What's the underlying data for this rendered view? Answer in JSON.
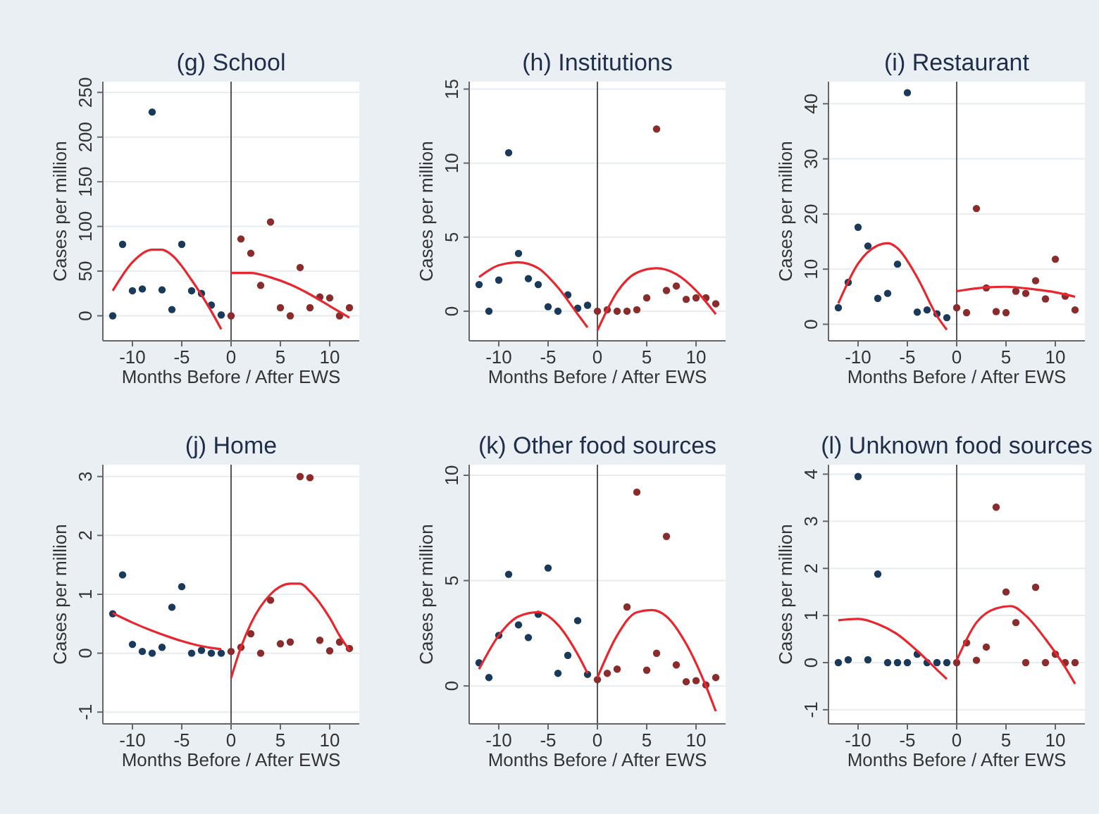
{
  "chart_data": [
    {
      "type": "scatter",
      "title": "(g) School",
      "xlabel": "Months Before / After EWS",
      "ylabel": "Cases per million",
      "xlim": [
        -13,
        13
      ],
      "xticks": [
        -10,
        -5,
        0,
        5,
        10
      ],
      "ylim": [
        -28,
        262
      ],
      "yticks": [
        0,
        50,
        100,
        150,
        200,
        250
      ],
      "grid": "y",
      "marker": "circle",
      "ref_lines": [
        {
          "axis": "x",
          "value": 0,
          "color": "#555555"
        }
      ],
      "series": [
        {
          "color": "#1a3a5c",
          "x": [
            -12,
            -11,
            -10,
            -9,
            -8,
            -7,
            -6,
            -5,
            -4,
            -3,
            -2,
            -1
          ],
          "values": [
            0,
            80,
            28,
            30,
            228,
            29,
            7,
            80,
            28,
            25,
            12,
            1
          ]
        },
        {
          "color": "#8b2c2c",
          "x": [
            0,
            1,
            2,
            3,
            4,
            5,
            6,
            7,
            8,
            9,
            10,
            11,
            12
          ],
          "values": [
            0,
            86,
            70,
            34,
            105,
            9,
            0,
            54,
            9,
            21,
            20,
            0,
            9
          ]
        },
        {
          "type": "line",
          "marker": "none",
          "color": "#e8262e",
          "x": [
            -12,
            -10,
            -8,
            -7,
            -6,
            -4,
            -2,
            -1
          ],
          "values": [
            28,
            60,
            74,
            74,
            68,
            40,
            5,
            -15
          ]
        },
        {
          "type": "line",
          "marker": "none",
          "color": "#e8262e",
          "x": [
            0,
            2,
            4,
            6,
            8,
            10,
            12
          ],
          "values": [
            48,
            48,
            43,
            35,
            24,
            11,
            -2
          ]
        }
      ]
    },
    {
      "type": "scatter",
      "title": "(h) Institutions",
      "xlabel": "Months Before / After EWS",
      "ylabel": "Cases per million",
      "xlim": [
        -13,
        13
      ],
      "xticks": [
        -10,
        -5,
        0,
        5,
        10
      ],
      "ylim": [
        -2,
        15.5
      ],
      "yticks": [
        0,
        5,
        10,
        15
      ],
      "grid": "y",
      "marker": "circle",
      "ref_lines": [
        {
          "axis": "x",
          "value": 0,
          "color": "#555555"
        }
      ],
      "series": [
        {
          "color": "#1a3a5c",
          "x": [
            -12,
            -11,
            -10,
            -9,
            -8,
            -7,
            -6,
            -5,
            -4,
            -3,
            -2,
            -1
          ],
          "values": [
            1.8,
            0,
            2.1,
            10.7,
            3.9,
            2.2,
            1.8,
            0.3,
            0,
            1.1,
            0.2,
            0.4
          ]
        },
        {
          "color": "#8b2c2c",
          "x": [
            0,
            1,
            2,
            3,
            4,
            5,
            6,
            7,
            8,
            9,
            10,
            11,
            12
          ],
          "values": [
            0,
            0.1,
            0,
            0,
            0.1,
            0.9,
            12.3,
            1.4,
            1.7,
            0.8,
            0.9,
            0.9,
            0.5
          ]
        },
        {
          "type": "line",
          "marker": "none",
          "color": "#e8262e",
          "x": [
            -12,
            -10,
            -8,
            -6,
            -4,
            -2,
            -1
          ],
          "values": [
            2.3,
            3.1,
            3.3,
            2.9,
            1.6,
            -0.2,
            -1.1
          ]
        },
        {
          "type": "line",
          "marker": "none",
          "color": "#e8262e",
          "x": [
            0,
            2,
            4,
            6,
            8,
            10,
            12
          ],
          "values": [
            -1.3,
            1.3,
            2.6,
            2.9,
            2.5,
            1.4,
            -0.2
          ]
        }
      ]
    },
    {
      "type": "scatter",
      "title": "(i) Restaurant",
      "xlabel": "Months Before / After EWS",
      "ylabel": "Cases per million",
      "xlim": [
        -13,
        13
      ],
      "xticks": [
        -10,
        -5,
        0,
        5,
        10
      ],
      "ylim": [
        -3,
        44
      ],
      "yticks": [
        0,
        10,
        20,
        30,
        40
      ],
      "grid": "y",
      "marker": "circle",
      "ref_lines": [
        {
          "axis": "x",
          "value": 0,
          "color": "#555555"
        }
      ],
      "series": [
        {
          "color": "#1a3a5c",
          "x": [
            -12,
            -11,
            -10,
            -9,
            -8,
            -7,
            -6,
            -5,
            -4,
            -3,
            -2,
            -1
          ],
          "values": [
            3,
            7.6,
            17.6,
            14.2,
            4.7,
            5.6,
            10.9,
            42,
            2.2,
            2.6,
            1.9,
            1.2
          ]
        },
        {
          "color": "#8b2c2c",
          "x": [
            0,
            1,
            2,
            3,
            4,
            5,
            6,
            7,
            8,
            9,
            10,
            11,
            12
          ],
          "values": [
            3,
            2.1,
            21,
            6.6,
            2.3,
            2.1,
            6,
            5.6,
            7.9,
            4.6,
            11.8,
            5.1,
            2.6
          ]
        },
        {
          "type": "line",
          "marker": "none",
          "color": "#e8262e",
          "x": [
            -12,
            -10,
            -8,
            -7,
            -6,
            -4,
            -2,
            -1
          ],
          "values": [
            3.8,
            11,
            14.3,
            14.7,
            13.8,
            8.5,
            1.5,
            -1
          ]
        },
        {
          "type": "line",
          "marker": "none",
          "color": "#e8262e",
          "x": [
            0,
            3,
            5,
            8,
            10,
            12
          ],
          "values": [
            6,
            6.7,
            6.8,
            6.3,
            5.8,
            5
          ]
        }
      ]
    },
    {
      "type": "scatter",
      "title": "(j) Home",
      "xlabel": "Months Before / After EWS",
      "ylabel": "Cases per million",
      "xlim": [
        -13,
        13
      ],
      "xticks": [
        -10,
        -5,
        0,
        5,
        10
      ],
      "ylim": [
        -1.2,
        3.2
      ],
      "yticks": [
        -1,
        0,
        1,
        2,
        3
      ],
      "grid": "y",
      "marker": "circle",
      "ref_lines": [
        {
          "axis": "x",
          "value": 0,
          "color": "#555555"
        }
      ],
      "series": [
        {
          "color": "#1a3a5c",
          "x": [
            -12,
            -11,
            -10,
            -9,
            -8,
            -7,
            -6,
            -5,
            -4,
            -3,
            -2,
            -1
          ],
          "values": [
            0.67,
            1.33,
            0.15,
            0.03,
            0,
            0.1,
            0.78,
            1.13,
            0,
            0.05,
            0,
            0
          ]
        },
        {
          "color": "#8b2c2c",
          "x": [
            0,
            1,
            2,
            3,
            4,
            5,
            6,
            7,
            8,
            9,
            10,
            11,
            12
          ],
          "values": [
            0.03,
            0.1,
            0.33,
            0,
            0.9,
            0.16,
            0.19,
            3,
            2.98,
            0.22,
            0.04,
            0.19,
            0.08
          ]
        },
        {
          "type": "line",
          "marker": "none",
          "color": "#e8262e",
          "x": [
            -12,
            -10,
            -8,
            -6,
            -4,
            -2,
            -1
          ],
          "values": [
            0.68,
            0.52,
            0.38,
            0.26,
            0.16,
            0.09,
            0.07
          ]
        },
        {
          "type": "line",
          "marker": "none",
          "color": "#e8262e",
          "x": [
            0,
            1,
            2,
            4,
            6,
            7,
            8,
            10,
            11,
            12
          ],
          "values": [
            -0.42,
            0.1,
            0.5,
            1,
            1.18,
            1.18,
            1.05,
            0.6,
            0.3,
            0.05
          ]
        }
      ]
    },
    {
      "type": "scatter",
      "title": "(k) Other food sources",
      "xlabel": "Months Before / After EWS",
      "ylabel": "Cases per million",
      "xlim": [
        -13,
        13
      ],
      "xticks": [
        -10,
        -5,
        0,
        5,
        10
      ],
      "ylim": [
        -1.8,
        10.5
      ],
      "yticks": [
        0,
        5,
        10
      ],
      "grid": "y",
      "marker": "circle",
      "ref_lines": [
        {
          "axis": "x",
          "value": 0,
          "color": "#555555"
        }
      ],
      "series": [
        {
          "color": "#1a3a5c",
          "x": [
            -12,
            -11,
            -10,
            -9,
            -8,
            -7,
            -6,
            -5,
            -4,
            -3,
            -2,
            -1
          ],
          "values": [
            1.1,
            0.4,
            2.4,
            5.3,
            2.9,
            2.3,
            3.4,
            5.6,
            0.6,
            1.45,
            3.1,
            0.55
          ]
        },
        {
          "color": "#8b2c2c",
          "x": [
            0,
            1,
            2,
            3,
            4,
            5,
            6,
            7,
            8,
            9,
            10,
            11,
            12
          ],
          "values": [
            0.3,
            0.6,
            0.8,
            3.75,
            9.2,
            0.75,
            1.55,
            7.1,
            1,
            0.2,
            0.25,
            0.05,
            0.4
          ]
        },
        {
          "type": "line",
          "marker": "none",
          "color": "#e8262e",
          "x": [
            -12,
            -10,
            -8,
            -6,
            -4,
            -2,
            -1
          ],
          "values": [
            0.8,
            2.4,
            3.3,
            3.5,
            2.9,
            1.5,
            0.6
          ]
        },
        {
          "type": "line",
          "marker": "none",
          "color": "#e8262e",
          "x": [
            0,
            2,
            4,
            5.5,
            7,
            9,
            11,
            12
          ],
          "values": [
            0.4,
            2.4,
            3.5,
            3.6,
            3.3,
            2,
            0,
            -1.2
          ]
        }
      ]
    },
    {
      "type": "scatter",
      "title": "(l) Unknown food sources",
      "xlabel": "Months Before / After EWS",
      "ylabel": "Cases per million",
      "xlim": [
        -13,
        13
      ],
      "xticks": [
        -10,
        -5,
        0,
        5,
        10
      ],
      "ylim": [
        -1.3,
        4.2
      ],
      "yticks": [
        -1,
        0,
        1,
        2,
        3,
        4
      ],
      "grid": "y",
      "marker": "circle",
      "ref_lines": [
        {
          "axis": "x",
          "value": 0,
          "color": "#555555"
        }
      ],
      "series": [
        {
          "color": "#1a3a5c",
          "x": [
            -12,
            -11,
            -10,
            -9,
            -8,
            -7,
            -6,
            -5,
            -4,
            -3,
            -2,
            -1
          ],
          "values": [
            0,
            0.06,
            3.95,
            0.06,
            1.88,
            0,
            0,
            0,
            0.18,
            0,
            0,
            0
          ]
        },
        {
          "color": "#8b2c2c",
          "x": [
            0,
            1,
            2,
            3,
            4,
            5,
            6,
            7,
            8,
            9,
            10,
            11,
            12
          ],
          "values": [
            0,
            0.42,
            0.05,
            0.33,
            3.3,
            1.5,
            0.85,
            0,
            1.6,
            0,
            0.18,
            0,
            0
          ]
        },
        {
          "type": "line",
          "marker": "none",
          "color": "#e8262e",
          "x": [
            -12,
            -10,
            -8,
            -6,
            -4,
            -2,
            -1
          ],
          "values": [
            0.9,
            0.93,
            0.82,
            0.6,
            0.25,
            -0.15,
            -0.35
          ]
        },
        {
          "type": "line",
          "marker": "none",
          "color": "#e8262e",
          "x": [
            0,
            2,
            4,
            5.5,
            7,
            9,
            11,
            12
          ],
          "values": [
            0.05,
            0.85,
            1.15,
            1.2,
            1,
            0.5,
            -0.1,
            -0.45
          ]
        }
      ]
    }
  ]
}
